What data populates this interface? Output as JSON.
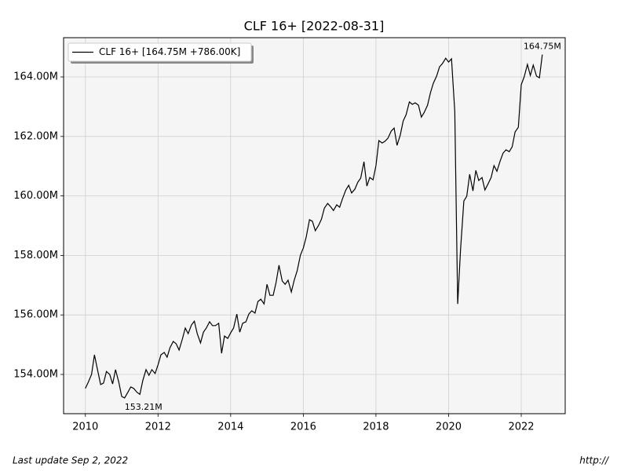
{
  "chart_data": {
    "type": "line",
    "title": "CLF 16+ [2022-08-31]",
    "x": [
      2010.0,
      2010.08,
      2010.17,
      2010.25,
      2010.33,
      2010.42,
      2010.5,
      2010.58,
      2010.67,
      2010.75,
      2010.83,
      2010.92,
      2011.0,
      2011.08,
      2011.17,
      2011.25,
      2011.33,
      2011.42,
      2011.5,
      2011.58,
      2011.67,
      2011.75,
      2011.83,
      2011.92,
      2012.0,
      2012.08,
      2012.17,
      2012.25,
      2012.33,
      2012.42,
      2012.5,
      2012.58,
      2012.67,
      2012.75,
      2012.83,
      2012.92,
      2013.0,
      2013.08,
      2013.17,
      2013.25,
      2013.33,
      2013.42,
      2013.5,
      2013.58,
      2013.67,
      2013.75,
      2013.83,
      2013.92,
      2014.0,
      2014.08,
      2014.17,
      2014.25,
      2014.33,
      2014.42,
      2014.5,
      2014.58,
      2014.67,
      2014.75,
      2014.83,
      2014.92,
      2015.0,
      2015.08,
      2015.17,
      2015.25,
      2015.33,
      2015.42,
      2015.5,
      2015.58,
      2015.67,
      2015.75,
      2015.83,
      2015.92,
      2016.0,
      2016.08,
      2016.17,
      2016.25,
      2016.33,
      2016.42,
      2016.5,
      2016.58,
      2016.67,
      2016.75,
      2016.83,
      2016.92,
      2017.0,
      2017.08,
      2017.17,
      2017.25,
      2017.33,
      2017.42,
      2017.5,
      2017.58,
      2017.67,
      2017.75,
      2017.83,
      2017.92,
      2018.0,
      2018.08,
      2018.17,
      2018.25,
      2018.33,
      2018.42,
      2018.5,
      2018.58,
      2018.67,
      2018.75,
      2018.83,
      2018.92,
      2019.0,
      2019.08,
      2019.17,
      2019.25,
      2019.33,
      2019.42,
      2019.5,
      2019.58,
      2019.67,
      2019.75,
      2019.83,
      2019.92,
      2020.0,
      2020.08,
      2020.17,
      2020.25,
      2020.33,
      2020.42,
      2020.5,
      2020.58,
      2020.67,
      2020.75,
      2020.83,
      2020.92,
      2021.0,
      2021.08,
      2021.17,
      2021.25,
      2021.33,
      2021.42,
      2021.5,
      2021.58,
      2021.67,
      2021.75,
      2021.83,
      2021.92,
      2022.0,
      2022.08,
      2022.17,
      2022.25,
      2022.33,
      2022.42,
      2022.5,
      2022.58
    ],
    "series": [
      {
        "name": "CLF 16+ [164.75M +786.00K]",
        "color": "#000000",
        "values": [
          153.53,
          153.74,
          154.0,
          154.66,
          154.18,
          153.66,
          153.71,
          154.1,
          154.0,
          153.68,
          154.16,
          153.74,
          153.26,
          153.21,
          153.4,
          153.58,
          153.53,
          153.4,
          153.33,
          153.79,
          154.16,
          153.97,
          154.16,
          154.03,
          154.32,
          154.66,
          154.74,
          154.58,
          154.9,
          155.11,
          155.03,
          154.82,
          155.19,
          155.56,
          155.37,
          155.66,
          155.79,
          155.37,
          155.06,
          155.42,
          155.56,
          155.77,
          155.64,
          155.64,
          155.72,
          154.71,
          155.29,
          155.21,
          155.4,
          155.56,
          156.03,
          155.42,
          155.72,
          155.77,
          156.03,
          156.14,
          156.06,
          156.45,
          156.53,
          156.37,
          157.03,
          156.66,
          156.66,
          157.09,
          157.67,
          157.14,
          157.03,
          157.17,
          156.77,
          157.17,
          157.48,
          158.01,
          158.25,
          158.62,
          159.2,
          159.15,
          158.83,
          159.01,
          159.22,
          159.59,
          159.75,
          159.64,
          159.51,
          159.7,
          159.62,
          159.91,
          160.2,
          160.36,
          160.1,
          160.23,
          160.46,
          160.6,
          161.15,
          160.33,
          160.62,
          160.54,
          161.02,
          161.86,
          161.78,
          161.84,
          161.94,
          162.18,
          162.28,
          161.7,
          162.05,
          162.52,
          162.73,
          163.16,
          163.08,
          163.13,
          163.05,
          162.65,
          162.81,
          163.05,
          163.47,
          163.79,
          164.03,
          164.34,
          164.45,
          164.63,
          164.5,
          164.61,
          162.84,
          156.37,
          158.22,
          159.83,
          159.99,
          160.73,
          160.17,
          160.86,
          160.52,
          160.62,
          160.2,
          160.39,
          160.62,
          161.02,
          160.83,
          161.18,
          161.44,
          161.55,
          161.49,
          161.65,
          162.15,
          162.31,
          163.74,
          164.0,
          164.42,
          164.05,
          164.4,
          164.03,
          163.97,
          164.75
        ]
      }
    ],
    "annotations": [
      {
        "text": "164.75M",
        "x": 2022.58,
        "y": 164.75
      },
      {
        "text": "153.21M",
        "x": 2011.08,
        "y": 153.21
      }
    ],
    "xlim": [
      2009.4,
      2023.21
    ],
    "ylim": [
      152.68,
      165.32
    ],
    "xticks": [
      2010,
      2012,
      2014,
      2016,
      2018,
      2020,
      2022
    ],
    "yticks": [
      {
        "value": 154,
        "label": "154.00M"
      },
      {
        "value": 156,
        "label": "156.00M"
      },
      {
        "value": 158,
        "label": "158.00M"
      },
      {
        "value": 160,
        "label": "160.00M"
      },
      {
        "value": 162,
        "label": "162.00M"
      },
      {
        "value": 164,
        "label": "164.00M"
      }
    ],
    "grid": true,
    "legend": "upper left",
    "plot_background": "#f5f5f5",
    "footer_left": "Last update Sep  2, 2022",
    "footer_right": "http://"
  }
}
